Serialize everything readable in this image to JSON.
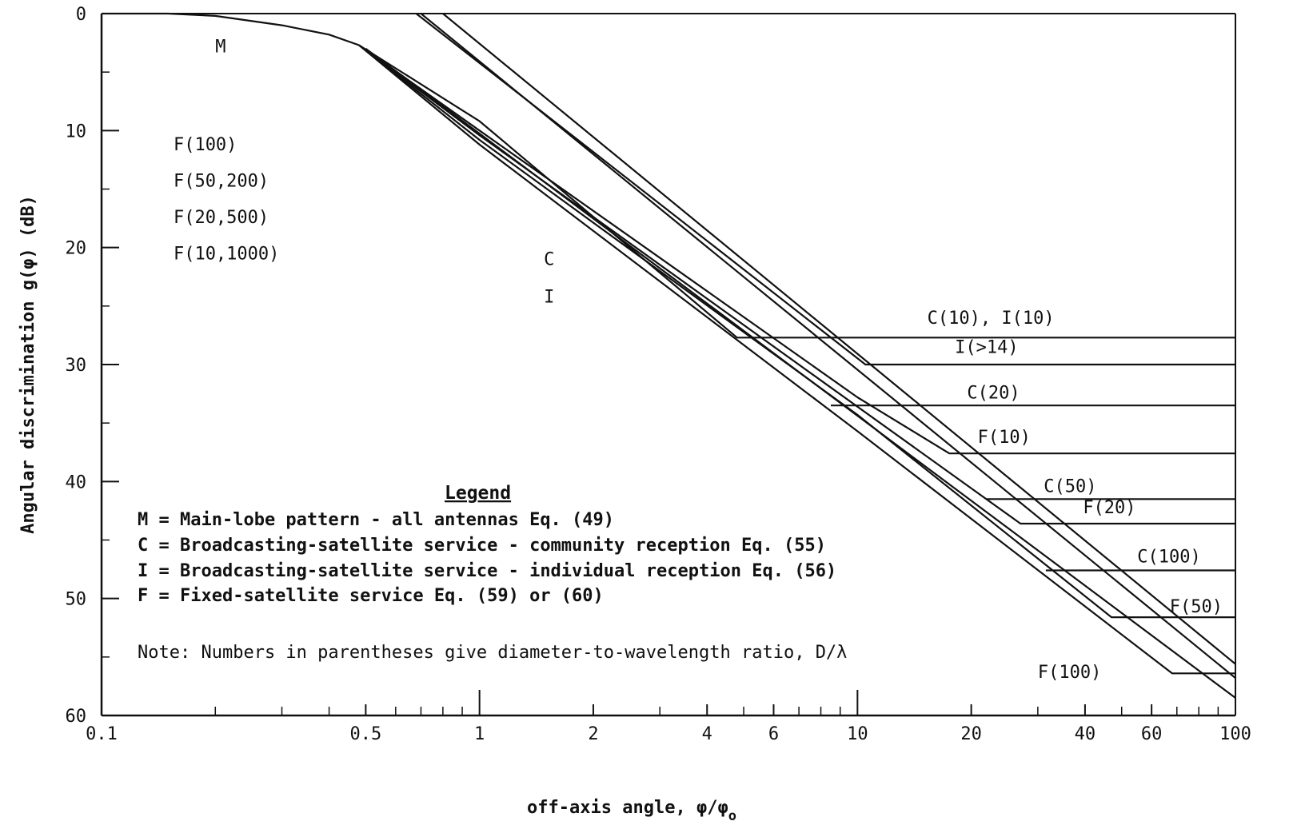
{
  "chart_data": {
    "type": "line",
    "xlabel": "off-axis angle, φ/φ",
    "xlabel_subscript": "o",
    "ylabel": "Angular discrimination g(φ) (dB)",
    "x_scale": "log",
    "xlim": [
      0.1,
      100
    ],
    "ylim": [
      0,
      60
    ],
    "y_inverted": true,
    "x_tick_labels": [
      {
        "value": 0.1,
        "label": "0.1"
      },
      {
        "value": 0.5,
        "label": "0.5"
      },
      {
        "value": 1,
        "label": "1"
      },
      {
        "value": 2,
        "label": "2"
      },
      {
        "value": 4,
        "label": "4"
      },
      {
        "value": 6,
        "label": "6"
      },
      {
        "value": 10,
        "label": "10"
      },
      {
        "value": 20,
        "label": "20"
      },
      {
        "value": 40,
        "label": "40"
      },
      {
        "value": 60,
        "label": "60"
      },
      {
        "value": 100,
        "label": "100"
      }
    ],
    "x_minor_ticks": [
      0.2,
      0.3,
      0.4,
      0.6,
      0.7,
      0.8,
      0.9,
      3,
      5,
      7,
      8,
      9,
      30,
      50,
      70,
      80,
      90
    ],
    "y_tick_labels": [
      {
        "value": 0,
        "label": "0"
      },
      {
        "value": 10,
        "label": "10"
      },
      {
        "value": 20,
        "label": "20"
      },
      {
        "value": 30,
        "label": "30"
      },
      {
        "value": 40,
        "label": "40"
      },
      {
        "value": 50,
        "label": "50"
      },
      {
        "value": 60,
        "label": "60"
      }
    ],
    "y_minor_ticks": [
      5,
      15,
      25,
      35,
      45,
      55
    ],
    "series": [
      {
        "key": "M",
        "points": [
          [
            0.1,
            0
          ],
          [
            0.15,
            0
          ],
          [
            0.2,
            0.2
          ],
          [
            0.3,
            1.0
          ],
          [
            0.4,
            1.8
          ],
          [
            0.48,
            2.7
          ]
        ]
      },
      {
        "key": "F100",
        "points": [
          [
            0.48,
            2.7
          ],
          [
            1,
            11.2
          ],
          [
            10,
            35.7
          ],
          [
            68,
            56.4
          ],
          [
            100,
            56.4
          ]
        ]
      },
      {
        "key": "F50",
        "points": [
          [
            0.48,
            2.7
          ],
          [
            1,
            10.8
          ],
          [
            10,
            34.3
          ],
          [
            47,
            51.6
          ],
          [
            100,
            51.6
          ]
        ]
      },
      {
        "key": "F20",
        "points": [
          [
            0.48,
            2.7
          ],
          [
            1,
            10.4
          ],
          [
            10,
            33.6
          ],
          [
            27,
            43.6
          ],
          [
            100,
            43.6
          ]
        ]
      },
      {
        "key": "F10",
        "points": [
          [
            0.48,
            2.7
          ],
          [
            1,
            10.0
          ],
          [
            10,
            32.8
          ],
          [
            17.5,
            37.6
          ],
          [
            100,
            37.6
          ]
        ]
      },
      {
        "key": "C",
        "points": [
          [
            0.48,
            2.7
          ],
          [
            1,
            9.2
          ],
          [
            4.8,
            27.7
          ],
          [
            100,
            27.7
          ]
        ]
      },
      {
        "key": "C_diag",
        "points": [
          [
            0.5,
            3.0
          ],
          [
            100,
            58.5
          ]
        ]
      },
      {
        "key": "I",
        "points": [
          [
            0.68,
            0
          ],
          [
            10.5,
            30.0
          ],
          [
            100,
            30.0
          ]
        ]
      },
      {
        "key": "I_diag",
        "points": [
          [
            0.7,
            0
          ],
          [
            100,
            56.8
          ]
        ]
      },
      {
        "key": "C20",
        "points": [
          [
            8.5,
            33.5
          ],
          [
            100,
            33.5
          ]
        ]
      },
      {
        "key": "C50",
        "points": [
          [
            22,
            41.5
          ],
          [
            100,
            41.5
          ]
        ]
      },
      {
        "key": "C100",
        "points": [
          [
            31.5,
            47.6
          ],
          [
            100,
            47.6
          ]
        ]
      },
      {
        "key": "I_diag2",
        "points": [
          [
            0.8,
            0
          ],
          [
            100,
            55.6
          ]
        ]
      }
    ],
    "series_labels": [
      {
        "text": "M",
        "x": 0.2,
        "y": 3.3,
        "anchor": "start"
      },
      {
        "text": "F(100)",
        "x": 0.155,
        "y": 11.7,
        "anchor": "start"
      },
      {
        "text": "F(50,200)",
        "x": 0.155,
        "y": 14.8,
        "anchor": "start"
      },
      {
        "text": "F(20,500)",
        "x": 0.155,
        "y": 17.9,
        "anchor": "start"
      },
      {
        "text": "F(10,1000)",
        "x": 0.155,
        "y": 21.0,
        "anchor": "start"
      },
      {
        "text": "C",
        "x": 1.48,
        "y": 21.5,
        "anchor": "start"
      },
      {
        "text": "I",
        "x": 1.48,
        "y": 24.7,
        "anchor": "start"
      },
      {
        "text": "C(10), I(10)",
        "x": 15.3,
        "y": 26.5,
        "anchor": "start"
      },
      {
        "text": "I(>14)",
        "x": 18.1,
        "y": 29.0,
        "anchor": "start"
      },
      {
        "text": "C(20)",
        "x": 19.5,
        "y": 32.9,
        "anchor": "start"
      },
      {
        "text": "F(10)",
        "x": 20.8,
        "y": 36.7,
        "anchor": "start"
      },
      {
        "text": "C(50)",
        "x": 31.1,
        "y": 40.9,
        "anchor": "start"
      },
      {
        "text": "F(20)",
        "x": 39.5,
        "y": 42.7,
        "anchor": "start"
      },
      {
        "text": "C(100)",
        "x": 55,
        "y": 46.9,
        "anchor": "start"
      },
      {
        "text": "F(50)",
        "x": 67,
        "y": 51.2,
        "anchor": "start"
      },
      {
        "text": "F(100)",
        "x": 30,
        "y": 56.8,
        "anchor": "start"
      }
    ],
    "legend": {
      "title": "Legend",
      "items": [
        "M = Main-lobe pattern - all antennas Eq. (49)",
        "C = Broadcasting-satellite service - community reception  Eq. (55)",
        "I = Broadcasting-satellite service - individual reception  Eq. (56)",
        "F = Fixed-satellite service Eq. (59)  or (60)"
      ],
      "note": "Note: Numbers in parentheses give diameter-to-wavelength ratio, D/λ"
    }
  }
}
